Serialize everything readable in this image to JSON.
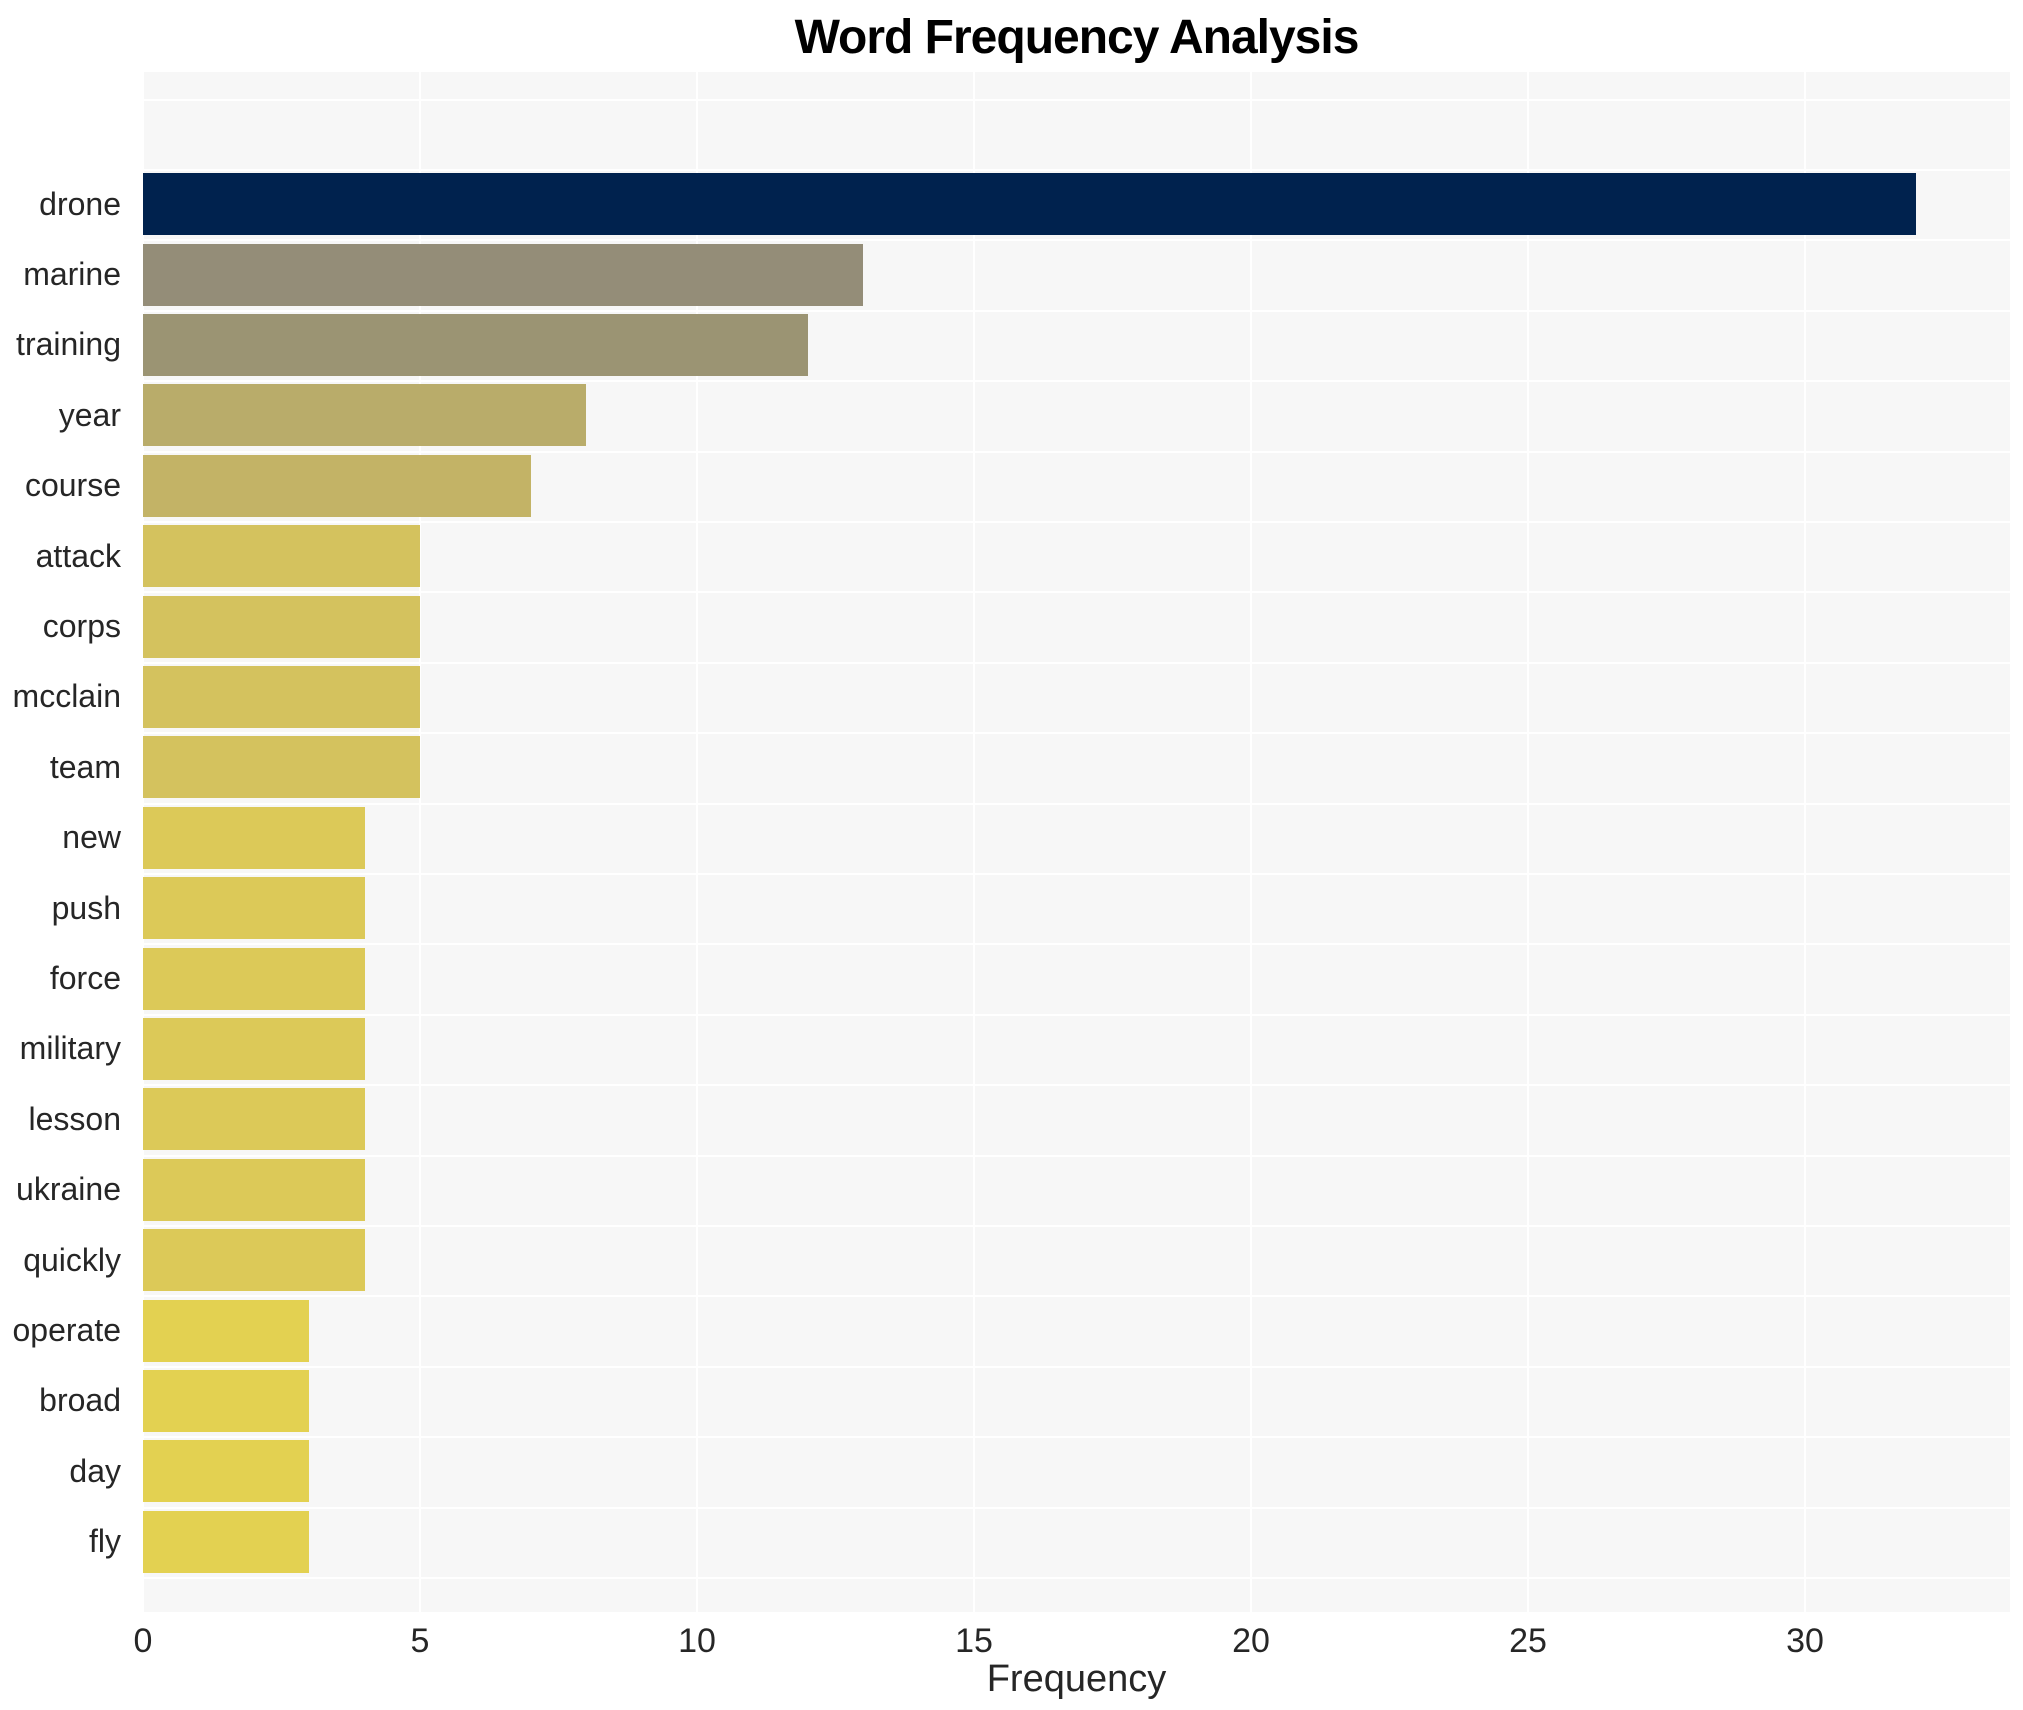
{
  "chart_data": {
    "type": "bar",
    "orientation": "horizontal",
    "title": "Word Frequency Analysis",
    "xlabel": "Frequency",
    "ylabel": "",
    "categories": [
      "drone",
      "marine",
      "training",
      "year",
      "course",
      "attack",
      "corps",
      "mcclain",
      "team",
      "new",
      "push",
      "force",
      "military",
      "lesson",
      "ukraine",
      "quickly",
      "operate",
      "broad",
      "day",
      "fly"
    ],
    "values": [
      32,
      13,
      12,
      8,
      7,
      5,
      5,
      5,
      5,
      4,
      4,
      4,
      4,
      4,
      4,
      4,
      3,
      3,
      3,
      3
    ],
    "bar_colors": [
      "#00224e",
      "#948d78",
      "#9b9473",
      "#b9ac6a",
      "#c3b366",
      "#d4c25e",
      "#d4c25e",
      "#d4c25e",
      "#d4c25e",
      "#dcc958",
      "#dcc958",
      "#dcc958",
      "#dcc958",
      "#dcc958",
      "#dcc958",
      "#dcc958",
      "#e3d151",
      "#e3d151",
      "#e3d151",
      "#e3d151"
    ],
    "xticks": [
      0,
      5,
      10,
      15,
      20,
      25,
      30
    ],
    "xlim": [
      0,
      33.7
    ],
    "grid": true,
    "legend": "none",
    "plot_background": "#f7f7f7",
    "grid_color": "#ffffff",
    "text_color": "#262626",
    "title_color": "#000000"
  }
}
